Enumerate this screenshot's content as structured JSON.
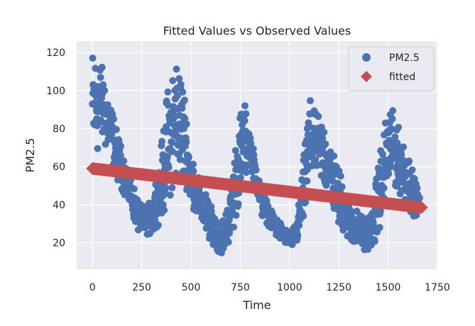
{
  "chart_data": {
    "type": "scatter",
    "title": "Fitted Values vs Observed Values",
    "xlabel": "Time",
    "ylabel": "PM2.5",
    "xlim": [
      -80,
      1750
    ],
    "ylim": [
      6,
      126
    ],
    "xticks": [
      0,
      250,
      500,
      750,
      1000,
      1250,
      1500,
      1750
    ],
    "yticks": [
      20,
      40,
      60,
      80,
      100,
      120
    ],
    "grid": true,
    "legend_position": "top-right",
    "background": "#eaeaf2",
    "series": [
      {
        "name": "PM2.5",
        "marker": "circle",
        "color": "#4c72b0",
        "envelope_x": [
          0,
          20,
          50,
          80,
          110,
          140,
          170,
          200,
          230,
          260,
          300,
          340,
          380,
          420,
          460,
          490,
          520,
          550,
          580,
          620,
          650,
          680,
          710,
          740,
          770,
          800,
          830,
          860,
          900,
          940,
          980,
          1010,
          1040,
          1070,
          1100,
          1130,
          1170,
          1210,
          1250,
          1290,
          1330,
          1360,
          1390,
          1420,
          1450,
          1480,
          1510,
          1540,
          1570,
          1600,
          1630,
          1660
        ],
        "envelope_low": [
          60,
          68,
          74,
          68,
          58,
          50,
          44,
          36,
          27,
          24,
          25,
          30,
          42,
          50,
          54,
          44,
          36,
          30,
          24,
          18,
          14,
          18,
          25,
          40,
          54,
          62,
          48,
          34,
          28,
          22,
          20,
          18,
          20,
          30,
          50,
          58,
          52,
          40,
          30,
          24,
          18,
          17,
          16,
          18,
          24,
          40,
          52,
          50,
          44,
          38,
          34,
          35
        ],
        "envelope_high": [
          120,
          118,
          112,
          100,
          84,
          72,
          62,
          52,
          42,
          38,
          42,
          62,
          98,
          118,
          104,
          74,
          60,
          52,
          44,
          35,
          30,
          36,
          58,
          82,
          94,
          78,
          62,
          48,
          38,
          32,
          27,
          25,
          34,
          62,
          96,
          88,
          84,
          72,
          58,
          46,
          38,
          34,
          32,
          38,
          60,
          80,
          94,
          84,
          76,
          68,
          55,
          44
        ]
      },
      {
        "name": "fitted",
        "marker": "diamond",
        "color": "#c44e52",
        "type": "line-of-markers",
        "x": [
          0,
          1670
        ],
        "y": [
          59,
          38.5
        ]
      }
    ]
  }
}
